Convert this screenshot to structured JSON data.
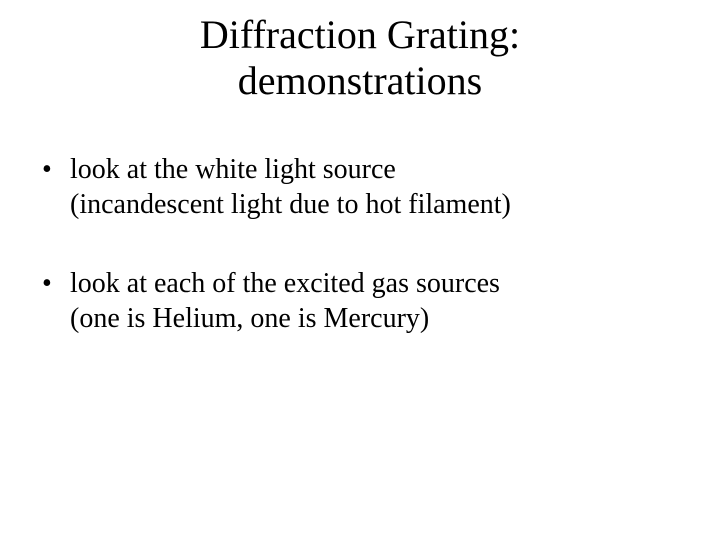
{
  "slide": {
    "title_line1": "Diffraction Grating:",
    "title_line2": "demonstrations",
    "bullets": [
      {
        "line1": "look at the white light source",
        "line2": "(incandescent light due to hot filament)"
      },
      {
        "line1": "look at each of the excited gas sources",
        "line2": "(one is Helium,  one is Mercury)"
      }
    ],
    "colors": {
      "background": "#ffffff",
      "text": "#000000"
    },
    "typography": {
      "font_family": "Times New Roman",
      "title_fontsize_pt": 40,
      "body_fontsize_pt": 28
    }
  }
}
